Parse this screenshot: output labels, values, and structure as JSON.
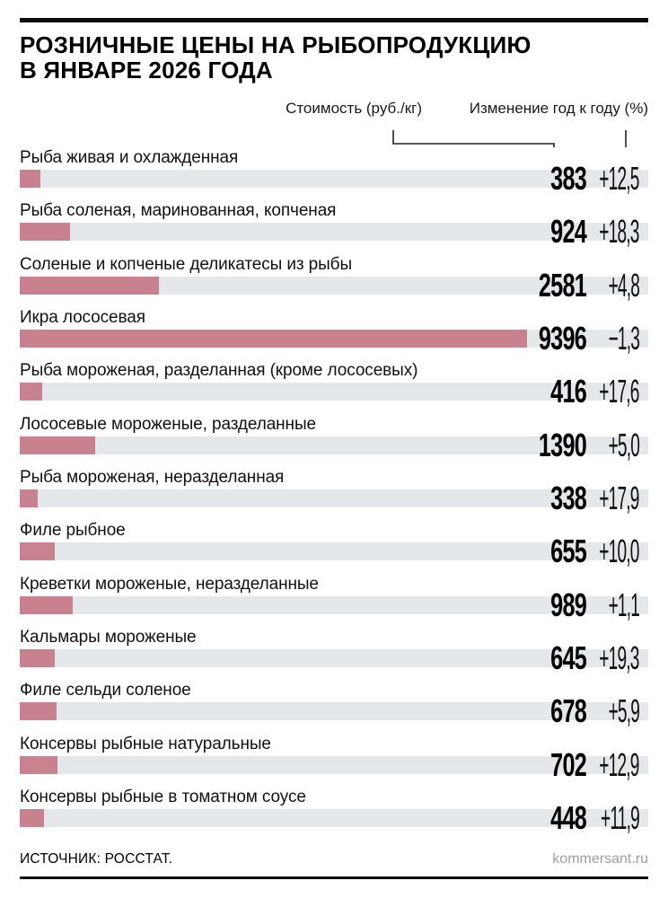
{
  "header": {
    "title_line1": "РОЗНИЧНЫЕ ЦЕНЫ НА РЫБОПРОДУКЦИЮ",
    "title_line2": "В ЯНВАРЕ 2026 ГОДА"
  },
  "columns": {
    "price_label": "Стоимость (руб./кг)",
    "change_label": "Изменение год к году (%)"
  },
  "footer": {
    "source": "ИСТОЧНИК: РОССТАТ.",
    "site": "kommersant.ru"
  },
  "colors": {
    "bar": "#c7818f",
    "band": "#e5e8ea",
    "rule": "#0b0b0b",
    "site_gray": "#9e9e9e"
  },
  "chart_data": {
    "type": "bar",
    "title": "Розничные цены на рыбопродукцию в январе 2026 года",
    "xlabel": "Стоимость (руб./кг)",
    "value_axis_range": [
      0,
      9396
    ],
    "change_label": "Изменение год к году (%)",
    "max_value": 9396,
    "rows": [
      {
        "label": "Рыба живая и охлажденная",
        "price": 383,
        "change": "+12,5"
      },
      {
        "label": "Рыба соленая, маринованная, копченая",
        "price": 924,
        "change": "+18,3"
      },
      {
        "label": "Соленые и копченые деликатесы из рыбы",
        "price": 2581,
        "change": "+4,8"
      },
      {
        "label": "Икра лососевая",
        "price": 9396,
        "change": "−1,3"
      },
      {
        "label": "Рыба мороженая, разделанная (кроме лососевых)",
        "price": 416,
        "change": "+17,6"
      },
      {
        "label": "Лососевые мороженые, разделанные",
        "price": 1390,
        "change": "+5,0"
      },
      {
        "label": "Рыба мороженая, неразделанная",
        "price": 338,
        "change": "+17,9"
      },
      {
        "label": "Филе рыбное",
        "price": 655,
        "change": "+10,0"
      },
      {
        "label": "Креветки мороженые, неразделанные",
        "price": 989,
        "change": "+1,1"
      },
      {
        "label": "Кальмары мороженые",
        "price": 645,
        "change": "+19,3"
      },
      {
        "label": "Филе сельди соленое",
        "price": 678,
        "change": "+5,9"
      },
      {
        "label": "Консервы рыбные натуральные",
        "price": 702,
        "change": "+12,9"
      },
      {
        "label": "Консервы рыбные в томатном соусе",
        "price": 448,
        "change": "+11,9"
      }
    ]
  }
}
